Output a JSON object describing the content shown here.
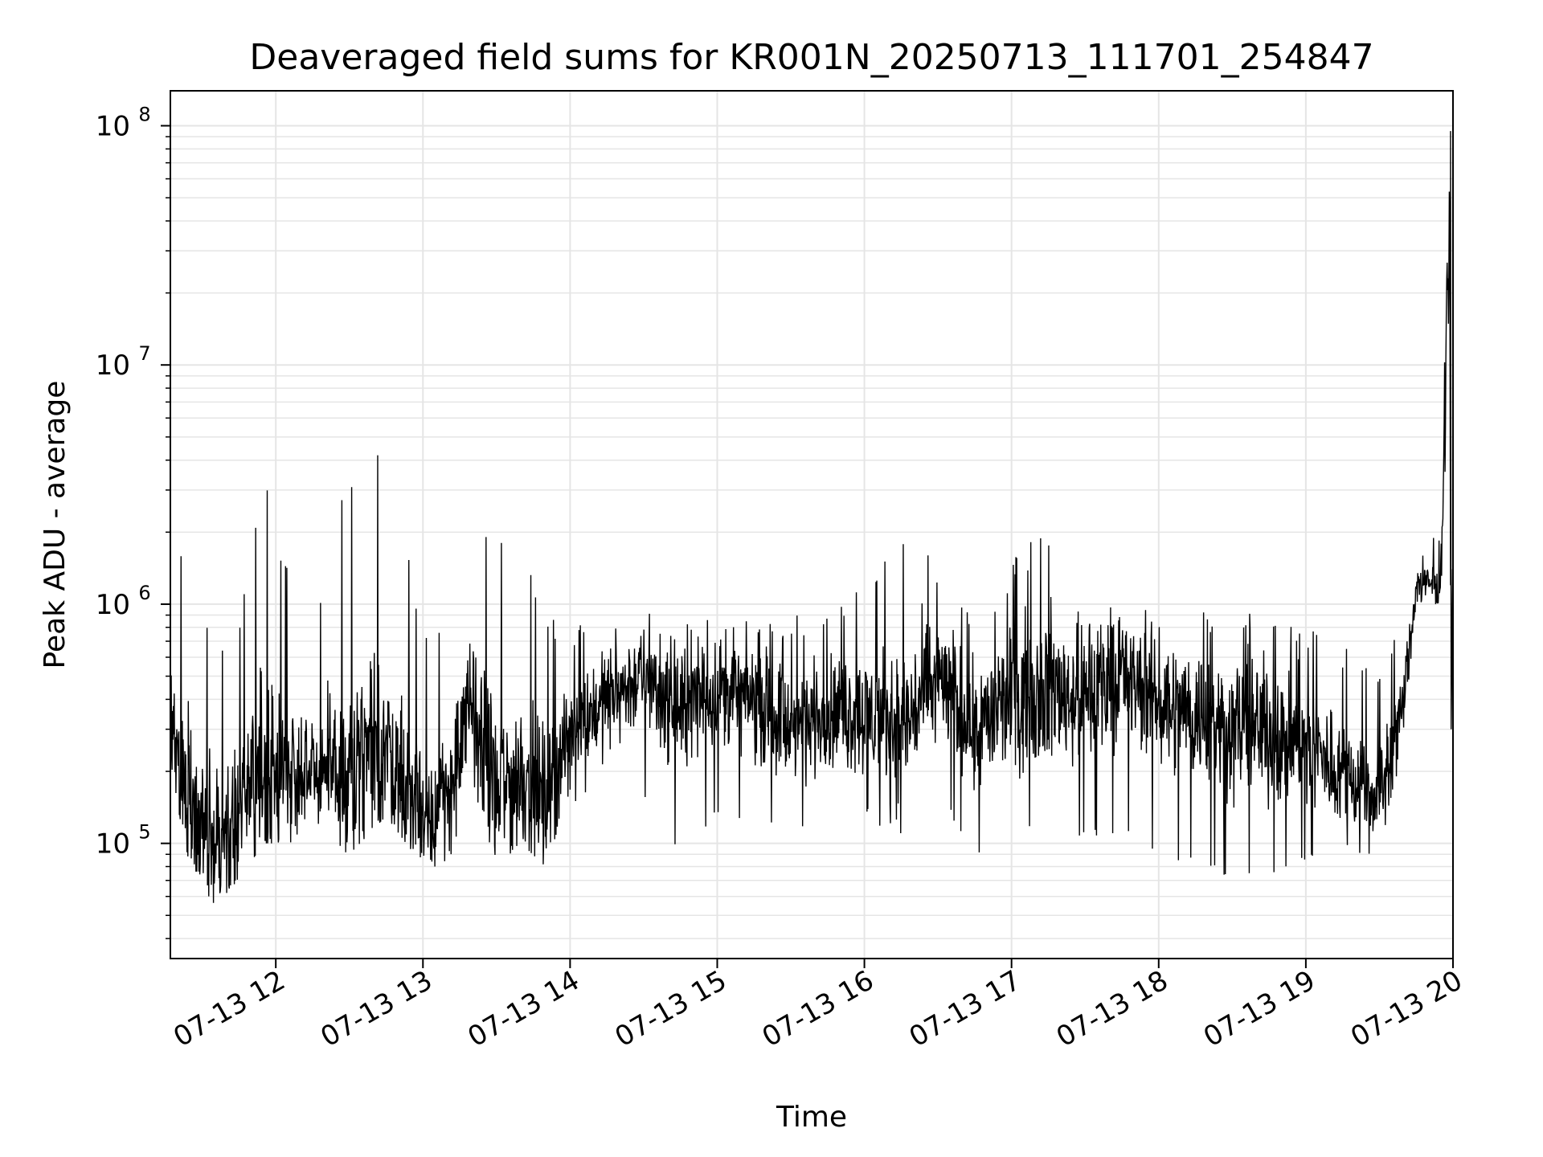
{
  "chart_data": {
    "type": "line",
    "title": "Deaveraged field sums for KR001N_20250713_111701_254847",
    "xlabel": "Time",
    "ylabel": "Peak ADU - average",
    "yscale": "log",
    "xlim": [
      "2025-07-13 11:17:01",
      "2025-07-13 20:00:00"
    ],
    "ylim": [
      33000,
      140000000
    ],
    "x_tick_labels": [
      "07-13 12",
      "07-13 13",
      "07-13 14",
      "07-13 15",
      "07-13 16",
      "07-13 17",
      "07-13 18",
      "07-13 19",
      "07-13 20"
    ],
    "y_ticks": [
      {
        "base": "10",
        "exp": "5",
        "value": 100000
      },
      {
        "base": "10",
        "exp": "6",
        "value": 1000000
      },
      {
        "base": "10",
        "exp": "7",
        "value": 10000000
      },
      {
        "base": "10",
        "exp": "8",
        "value": 100000000
      }
    ],
    "grid": true,
    "line_color": "#000000",
    "grid_color": "#e5e5e5",
    "series": [
      {
        "x": [
          "2025-07-13 11:17",
          "2025-07-13 11:25",
          "2025-07-13 11:35",
          "2025-07-13 11:45",
          "2025-07-13 11:55",
          "2025-07-13 12:05",
          "2025-07-13 12:15",
          "2025-07-13 12:30",
          "2025-07-13 12:45",
          "2025-07-13 13:00",
          "2025-07-13 13:10",
          "2025-07-13 13:20",
          "2025-07-13 13:30",
          "2025-07-13 13:40",
          "2025-07-13 13:50",
          "2025-07-13 14:00",
          "2025-07-13 14:15",
          "2025-07-13 14:30",
          "2025-07-13 14:45",
          "2025-07-13 15:00",
          "2025-07-13 15:15",
          "2025-07-13 15:30",
          "2025-07-13 15:45",
          "2025-07-13 16:00",
          "2025-07-13 16:15",
          "2025-07-13 16:30",
          "2025-07-13 16:45",
          "2025-07-13 17:00",
          "2025-07-13 17:15",
          "2025-07-13 17:30",
          "2025-07-13 17:45",
          "2025-07-13 18:00",
          "2025-07-13 18:15",
          "2025-07-13 18:30",
          "2025-07-13 18:45",
          "2025-07-13 19:00",
          "2025-07-13 19:15",
          "2025-07-13 19:30",
          "2025-07-13 19:40",
          "2025-07-13 19:45",
          "2025-07-13 19:55",
          "2025-07-13 19:59",
          "2025-07-13 20:00"
        ],
        "y": [
          300000,
          150000,
          100000,
          140000,
          200000,
          200000,
          220000,
          180000,
          250000,
          140000,
          150000,
          400000,
          160000,
          200000,
          150000,
          300000,
          400000,
          500000,
          350000,
          450000,
          400000,
          300000,
          350000,
          350000,
          300000,
          500000,
          300000,
          400000,
          450000,
          400000,
          500000,
          400000,
          350000,
          300000,
          300000,
          250000,
          200000,
          160000,
          400000,
          1200000,
          1200000,
          95000000,
          350000
        ],
        "low": [
          200000,
          80000,
          55000,
          70000,
          100000,
          100000,
          110000,
          90000,
          130000,
          80000,
          80000,
          180000,
          80000,
          100000,
          80000,
          150000,
          150000,
          150000,
          90000,
          130000,
          120000,
          100000,
          120000,
          130000,
          100000,
          150000,
          90000,
          100000,
          130000,
          100000,
          110000,
          90000,
          80000,
          70000,
          70000,
          80000,
          90000,
          90000,
          250000,
          950000,
          1000000,
          900000,
          300000
        ],
        "high": [
          1600000,
          2000000,
          600000,
          800000,
          4000000,
          1500000,
          800000,
          4000000,
          5000000,
          900000,
          1000000,
          2500000,
          2000000,
          1800000,
          1000000,
          800000,
          1000000,
          1000000,
          900000,
          1000000,
          1000000,
          900000,
          900000,
          1200000,
          2000000,
          1500000,
          900000,
          1500000,
          2300000,
          1000000,
          1000000,
          1000000,
          950000,
          1000000,
          1000000,
          800000,
          700000,
          600000,
          800000,
          2000000,
          2400000,
          95000000,
          1400000
        ]
      }
    ]
  }
}
